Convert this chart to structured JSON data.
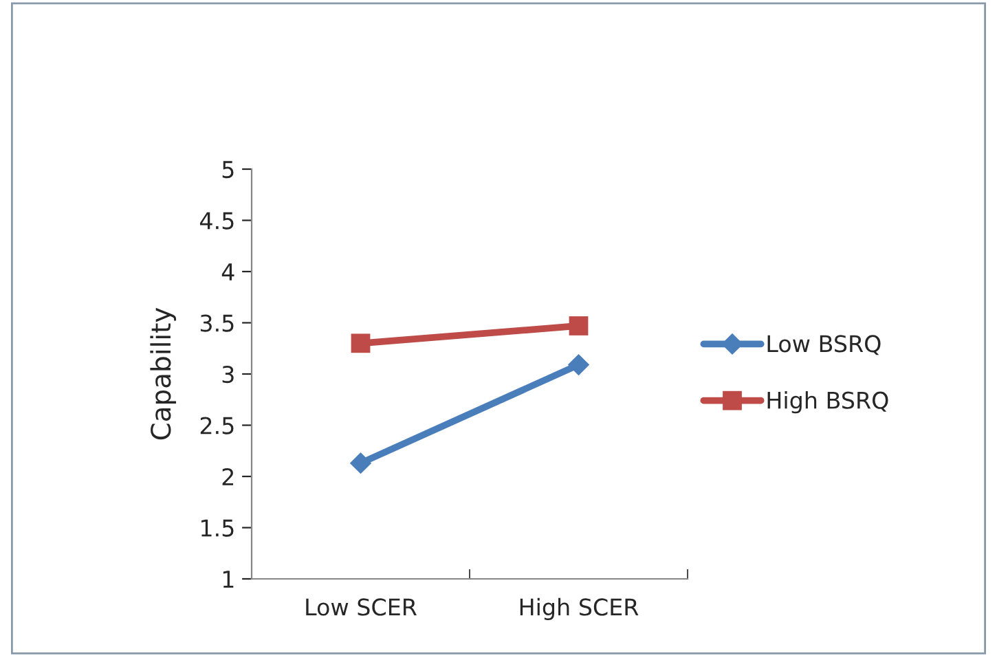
{
  "chart_data": {
    "type": "line",
    "ylabel": "Capability",
    "categories": [
      "Low SCER",
      "High SCER"
    ],
    "series": [
      {
        "name": "Low BSRQ",
        "color": "#4a7ebb",
        "values": [
          2.13,
          3.09
        ],
        "marker": "diamond"
      },
      {
        "name": "High BSRQ",
        "color": "#be4b48",
        "values": [
          3.3,
          3.47
        ],
        "marker": "square"
      }
    ],
    "ylim": [
      1,
      5
    ],
    "yticks": [
      1,
      1.5,
      2,
      2.5,
      3,
      3.5,
      4,
      4.5,
      5
    ],
    "grid": false,
    "legend": "right",
    "line_style": "solid"
  }
}
